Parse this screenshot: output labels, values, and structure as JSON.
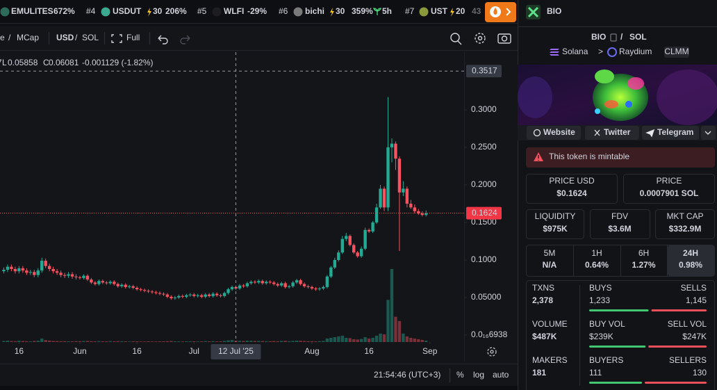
{
  "ticker": [
    {
      "name": "EMULITES",
      "change": "672%"
    },
    {
      "rank": "#4",
      "name": "USDUT",
      "boost": "30",
      "change": "206%"
    },
    {
      "rank": "#5",
      "name": "WLFI",
      "change": "-29%"
    },
    {
      "rank": "#6",
      "name": "bichi",
      "boost": "30",
      "change": "359%",
      "age": "5h"
    },
    {
      "rank": "#7",
      "name": "UST",
      "boost": "20",
      "change": "43"
    }
  ],
  "toolbar": {
    "mode": "e",
    "sep_a": "/",
    "mcap": "MCap",
    "usd": "USD",
    "sep_b": "/",
    "sol": "SOL",
    "full": "Full"
  },
  "chart_data": {
    "type": "candlestick",
    "legend": {
      "cut": "7",
      "low_label": "L",
      "low": "0.05858",
      "close_label": "C",
      "close": "0.06081",
      "change": "-0.001129 (-1.82%)"
    },
    "up_color": "#22ab94",
    "down_color": "#f7525f",
    "xlim": [
      "2025-05-11",
      "2025-09-10"
    ],
    "xticks": [
      {
        "value": "2025-05-16",
        "label": "16"
      },
      {
        "value": "2025-06-01",
        "label": "Jun"
      },
      {
        "value": "2025-06-16",
        "label": "16"
      },
      {
        "value": "2025-07-01",
        "label": "Jul"
      },
      {
        "value": "2025-08-01",
        "label": "Aug"
      },
      {
        "value": "2025-08-16",
        "label": "16"
      },
      {
        "value": "2025-09-01",
        "label": "Sep"
      }
    ],
    "ylim": [
      -0.0093,
      0.3769
    ],
    "yticks": [
      {
        "value": 6.938e-18,
        "label": "0.0₁₆6938"
      },
      {
        "value": 0.05,
        "label": "0.05000"
      },
      {
        "value": 0.1,
        "label": "0.1000"
      },
      {
        "value": 0.15,
        "label": "0.1500"
      },
      {
        "value": 0.2,
        "label": "0.2000"
      },
      {
        "value": 0.25,
        "label": "0.2500"
      },
      {
        "value": 0.3,
        "label": "0.3000"
      }
    ],
    "crosshair": {
      "x": "2025-07-12",
      "label": "12 Jul '25",
      "y": 0.3517
    },
    "last_price": 0.1624,
    "x": [
      "2025-05-12",
      "2025-05-13",
      "2025-05-14",
      "2025-05-15",
      "2025-05-16",
      "2025-05-17",
      "2025-05-18",
      "2025-05-19",
      "2025-05-20",
      "2025-05-21",
      "2025-05-22",
      "2025-05-23",
      "2025-05-24",
      "2025-05-25",
      "2025-05-26",
      "2025-05-27",
      "2025-05-28",
      "2025-05-29",
      "2025-05-30",
      "2025-05-31",
      "2025-06-01",
      "2025-06-02",
      "2025-06-03",
      "2025-06-04",
      "2025-06-05",
      "2025-06-06",
      "2025-06-07",
      "2025-06-08",
      "2025-06-09",
      "2025-06-10",
      "2025-06-11",
      "2025-06-12",
      "2025-06-13",
      "2025-06-14",
      "2025-06-15",
      "2025-06-16",
      "2025-06-17",
      "2025-06-18",
      "2025-06-19",
      "2025-06-20",
      "2025-06-21",
      "2025-06-22",
      "2025-06-23",
      "2025-06-24",
      "2025-06-25",
      "2025-06-26",
      "2025-06-27",
      "2025-06-28",
      "2025-06-29",
      "2025-06-30",
      "2025-07-01",
      "2025-07-02",
      "2025-07-03",
      "2025-07-04",
      "2025-07-05",
      "2025-07-06",
      "2025-07-07",
      "2025-07-08",
      "2025-07-09",
      "2025-07-10",
      "2025-07-11",
      "2025-07-12",
      "2025-07-13",
      "2025-07-14",
      "2025-07-15",
      "2025-07-16",
      "2025-07-17",
      "2025-07-18",
      "2025-07-19",
      "2025-07-20",
      "2025-07-21",
      "2025-07-22",
      "2025-07-23",
      "2025-07-24",
      "2025-07-25",
      "2025-07-26",
      "2025-07-27",
      "2025-07-28",
      "2025-07-29",
      "2025-07-30",
      "2025-07-31",
      "2025-08-01",
      "2025-08-02",
      "2025-08-03",
      "2025-08-04",
      "2025-08-05",
      "2025-08-06",
      "2025-08-07",
      "2025-08-08",
      "2025-08-09",
      "2025-08-10",
      "2025-08-11",
      "2025-08-12",
      "2025-08-13",
      "2025-08-14",
      "2025-08-15",
      "2025-08-16",
      "2025-08-17",
      "2025-08-18",
      "2025-08-19",
      "2025-08-20",
      "2025-08-21",
      "2025-08-22",
      "2025-08-23",
      "2025-08-24",
      "2025-08-25",
      "2025-08-26",
      "2025-08-27",
      "2025-08-28",
      "2025-08-29",
      "2025-08-30",
      "2025-08-31"
    ],
    "open": [
      0.085,
      0.087,
      0.091,
      0.088,
      0.085,
      0.089,
      0.086,
      0.083,
      0.084,
      0.08,
      0.086,
      0.099,
      0.092,
      0.088,
      0.085,
      0.083,
      0.08,
      0.079,
      0.081,
      0.078,
      0.077,
      0.076,
      0.079,
      0.074,
      0.07,
      0.068,
      0.072,
      0.07,
      0.069,
      0.071,
      0.068,
      0.065,
      0.067,
      0.064,
      0.065,
      0.063,
      0.061,
      0.06,
      0.059,
      0.058,
      0.057,
      0.056,
      0.055,
      0.054,
      0.051,
      0.049,
      0.05,
      0.052,
      0.051,
      0.053,
      0.054,
      0.052,
      0.053,
      0.051,
      0.054,
      0.052,
      0.055,
      0.053,
      0.052,
      0.056,
      0.061,
      0.064,
      0.062,
      0.066,
      0.065,
      0.069,
      0.071,
      0.07,
      0.072,
      0.069,
      0.071,
      0.07,
      0.068,
      0.066,
      0.069,
      0.064,
      0.065,
      0.07,
      0.073,
      0.068,
      0.065,
      0.064,
      0.062,
      0.061,
      0.062,
      0.064,
      0.078,
      0.09,
      0.1,
      0.11,
      0.128,
      0.132,
      0.12,
      0.11,
      0.105,
      0.115,
      0.14,
      0.138,
      0.15,
      0.17,
      0.195,
      0.17,
      0.25,
      0.255,
      0.235,
      0.19,
      0.195,
      0.175,
      0.17,
      0.165,
      0.162,
      0.16
    ],
    "high": [
      0.09,
      0.094,
      0.094,
      0.091,
      0.092,
      0.092,
      0.089,
      0.087,
      0.087,
      0.089,
      0.103,
      0.102,
      0.095,
      0.091,
      0.088,
      0.086,
      0.083,
      0.084,
      0.084,
      0.081,
      0.079,
      0.081,
      0.081,
      0.076,
      0.072,
      0.074,
      0.074,
      0.072,
      0.073,
      0.073,
      0.07,
      0.069,
      0.069,
      0.067,
      0.067,
      0.065,
      0.063,
      0.062,
      0.061,
      0.06,
      0.059,
      0.058,
      0.057,
      0.056,
      0.053,
      0.052,
      0.054,
      0.054,
      0.055,
      0.056,
      0.056,
      0.055,
      0.055,
      0.056,
      0.056,
      0.057,
      0.057,
      0.055,
      0.058,
      0.063,
      0.066,
      0.066,
      0.068,
      0.068,
      0.071,
      0.073,
      0.073,
      0.074,
      0.074,
      0.073,
      0.073,
      0.072,
      0.07,
      0.071,
      0.071,
      0.067,
      0.072,
      0.075,
      0.075,
      0.07,
      0.067,
      0.066,
      0.064,
      0.064,
      0.066,
      0.08,
      0.092,
      0.103,
      0.113,
      0.132,
      0.136,
      0.134,
      0.122,
      0.112,
      0.118,
      0.143,
      0.142,
      0.152,
      0.175,
      0.2,
      0.198,
      0.317,
      0.262,
      0.258,
      0.238,
      0.205,
      0.198,
      0.18,
      0.174,
      0.168,
      0.165,
      0.166
    ],
    "low": [
      0.082,
      0.084,
      0.085,
      0.082,
      0.082,
      0.083,
      0.08,
      0.08,
      0.077,
      0.077,
      0.083,
      0.089,
      0.085,
      0.082,
      0.08,
      0.077,
      0.076,
      0.076,
      0.075,
      0.074,
      0.074,
      0.074,
      0.072,
      0.068,
      0.066,
      0.066,
      0.068,
      0.067,
      0.067,
      0.066,
      0.063,
      0.063,
      0.062,
      0.062,
      0.061,
      0.059,
      0.058,
      0.057,
      0.056,
      0.055,
      0.054,
      0.053,
      0.052,
      0.049,
      0.047,
      0.047,
      0.048,
      0.049,
      0.049,
      0.051,
      0.05,
      0.05,
      0.049,
      0.049,
      0.05,
      0.05,
      0.051,
      0.05,
      0.05,
      0.054,
      0.059,
      0.06,
      0.06,
      0.063,
      0.063,
      0.067,
      0.068,
      0.068,
      0.067,
      0.067,
      0.068,
      0.066,
      0.064,
      0.064,
      0.062,
      0.062,
      0.063,
      0.068,
      0.066,
      0.063,
      0.062,
      0.06,
      0.059,
      0.059,
      0.06,
      0.062,
      0.076,
      0.088,
      0.098,
      0.108,
      0.125,
      0.118,
      0.108,
      0.103,
      0.103,
      0.113,
      0.136,
      0.136,
      0.148,
      0.168,
      0.165,
      0.165,
      0.23,
      0.22,
      0.112,
      0.185,
      0.17,
      0.168,
      0.162,
      0.16,
      0.158,
      0.158
    ],
    "close": [
      0.087,
      0.091,
      0.088,
      0.085,
      0.089,
      0.086,
      0.083,
      0.084,
      0.08,
      0.086,
      0.099,
      0.092,
      0.088,
      0.085,
      0.083,
      0.08,
      0.079,
      0.081,
      0.078,
      0.077,
      0.076,
      0.079,
      0.074,
      0.07,
      0.068,
      0.072,
      0.07,
      0.069,
      0.071,
      0.068,
      0.065,
      0.067,
      0.064,
      0.065,
      0.063,
      0.061,
      0.06,
      0.059,
      0.058,
      0.057,
      0.056,
      0.055,
      0.054,
      0.051,
      0.049,
      0.05,
      0.052,
      0.051,
      0.053,
      0.054,
      0.052,
      0.053,
      0.051,
      0.054,
      0.052,
      0.055,
      0.053,
      0.052,
      0.056,
      0.061,
      0.064,
      0.062,
      0.066,
      0.065,
      0.069,
      0.071,
      0.07,
      0.072,
      0.069,
      0.071,
      0.07,
      0.068,
      0.066,
      0.069,
      0.064,
      0.065,
      0.07,
      0.073,
      0.068,
      0.065,
      0.064,
      0.062,
      0.061,
      0.062,
      0.064,
      0.078,
      0.09,
      0.1,
      0.11,
      0.128,
      0.132,
      0.12,
      0.11,
      0.105,
      0.115,
      0.14,
      0.138,
      0.15,
      0.17,
      0.195,
      0.17,
      0.25,
      0.255,
      0.235,
      0.19,
      0.195,
      0.175,
      0.17,
      0.165,
      0.162,
      0.16,
      0.1624
    ],
    "volume": [
      8,
      10,
      7,
      6,
      9,
      7,
      6,
      5,
      8,
      9,
      25,
      14,
      10,
      8,
      7,
      6,
      6,
      5,
      5,
      6,
      6,
      7,
      8,
      6,
      5,
      6,
      5,
      5,
      6,
      5,
      6,
      5,
      5,
      4,
      5,
      5,
      4,
      4,
      5,
      4,
      4,
      5,
      5,
      6,
      7,
      5,
      5,
      4,
      5,
      5,
      5,
      4,
      5,
      6,
      5,
      6,
      5,
      5,
      8,
      12,
      14,
      10,
      9,
      8,
      10,
      9,
      8,
      8,
      7,
      6,
      6,
      7,
      6,
      8,
      9,
      6,
      8,
      10,
      9,
      7,
      6,
      6,
      5,
      6,
      8,
      25,
      30,
      35,
      40,
      45,
      30,
      28,
      20,
      18,
      22,
      35,
      25,
      30,
      45,
      60,
      55,
      300,
      520,
      180,
      150,
      60,
      40,
      30,
      25,
      20,
      15,
      10
    ]
  },
  "status_bar": {
    "time": "21:54:46 (UTC+3)",
    "percent": "%",
    "log": "log",
    "auto": "auto"
  },
  "token": {
    "header_symbol": "BIO",
    "pair": {
      "base": "BIO",
      "sep": "/",
      "quote": "SOL"
    },
    "chain": "Solana",
    "crumb": ">",
    "dex": "Raydium",
    "pool_type": "CLMM",
    "links": [
      "Website",
      "Twitter",
      "Telegram"
    ],
    "warning": "This token is mintable",
    "prices": [
      {
        "label": "PRICE USD",
        "value": "$0.1624"
      },
      {
        "label": "PRICE",
        "value": "0.0007901 SOL"
      }
    ],
    "metrics": [
      {
        "label": "LIQUIDITY",
        "value": "$975K"
      },
      {
        "label": "FDV",
        "value": "$3.6M"
      },
      {
        "label": "MKT CAP",
        "value": "$332.9M"
      }
    ],
    "timeframes": [
      {
        "label": "5M",
        "change": "N/A"
      },
      {
        "label": "1H",
        "change": "0.64%"
      },
      {
        "label": "6H",
        "change": "1.27%"
      },
      {
        "label": "24H",
        "change": "0.98%",
        "active": true
      }
    ],
    "stats": [
      {
        "label": "TXNS",
        "total": "2,378",
        "buy_label": "BUYS",
        "buy": {
          "value": 1233,
          "label": "1,233"
        },
        "sell_label": "SELLS",
        "sell": {
          "value": 1145,
          "label": "1,145"
        }
      },
      {
        "label": "VOLUME",
        "total": "$487K",
        "buy_label": "BUY VOL",
        "buy": {
          "value": 239000,
          "label": "$239K"
        },
        "sell_label": "SELL VOL",
        "sell": {
          "value": 247000,
          "label": "$247K"
        }
      },
      {
        "label": "MAKERS",
        "total": "181",
        "buy_label": "BUYERS",
        "buy": {
          "value": 111,
          "label": "111"
        },
        "sell_label": "SELLERS",
        "sell": {
          "value": 130,
          "label": "130"
        }
      }
    ]
  }
}
